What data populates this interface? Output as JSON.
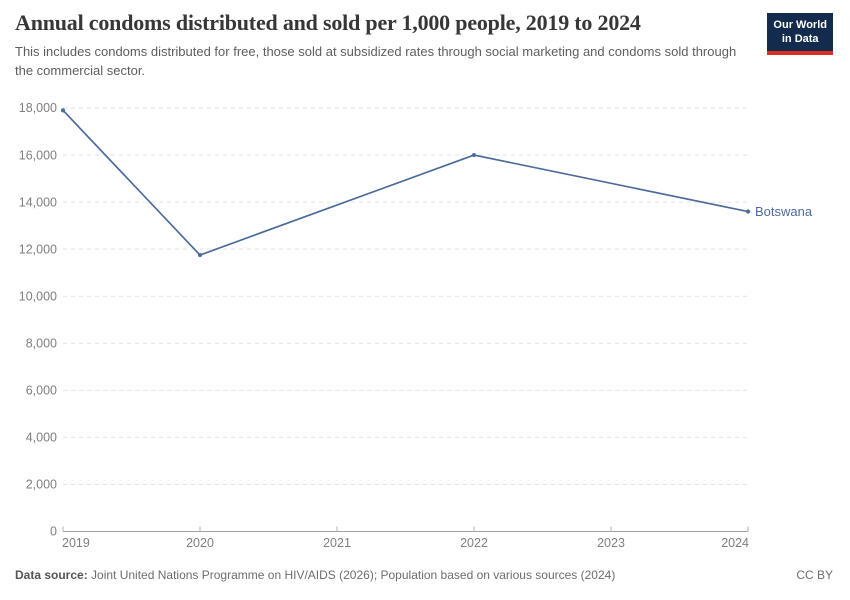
{
  "header": {
    "title": "Annual condoms distributed and sold per 1,000 people, 2019 to 2024",
    "subtitle": "This includes condoms distributed for free, those sold at subsidized rates through social marketing and condoms sold through the commercial sector.",
    "logo": {
      "line1": "Our World",
      "line2": "in Data"
    }
  },
  "footer": {
    "source_label": "Data source:",
    "source_text": " Joint United Nations Programme on HIV/AIDS (2026); Population based on various sources (2024)",
    "license": "CC BY"
  },
  "chart_data": {
    "type": "line",
    "title": "Annual condoms distributed and sold per 1,000 people, 2019 to 2024",
    "subtitle": "This includes condoms distributed for free, those sold at subsidized rates through social marketing and condoms sold through the commercial sector.",
    "xlabel": "",
    "ylabel": "",
    "xlim": [
      2019,
      2024
    ],
    "ylim": [
      0,
      18000
    ],
    "x_ticks": [
      2019,
      2020,
      2021,
      2022,
      2023,
      2024
    ],
    "y_ticks": [
      0,
      2000,
      4000,
      6000,
      8000,
      10000,
      12000,
      14000,
      16000,
      18000
    ],
    "grid": "horizontal-dashed",
    "legend_position": "end-of-line-label",
    "series": [
      {
        "name": "Botswana",
        "x": [
          2019,
          2020,
          2022,
          2024
        ],
        "values": [
          17900,
          11750,
          16000,
          13600
        ]
      }
    ],
    "colors": {
      "line": "#4c6a9c",
      "end_label": "#4c6a9c",
      "grid": "#e2e2e2",
      "axis": "#a3a3a3",
      "tick": "#b3b3b3",
      "axis_text": "#7f7f7f"
    }
  }
}
